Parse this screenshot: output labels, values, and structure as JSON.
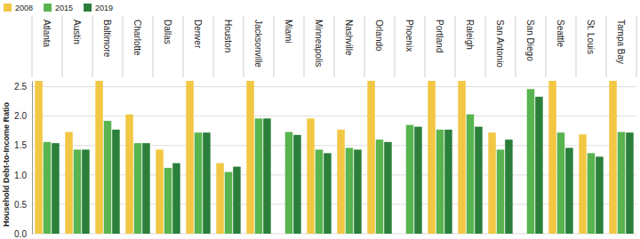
{
  "chart_data": {
    "type": "bar",
    "ylabel": "Household Debt-to-Income Ratio",
    "categories": [
      "Atlanta",
      "Austin",
      "Baltimore",
      "Charlotte",
      "Dallas",
      "Denver",
      "Houston",
      "Jacksonville",
      "Miami",
      "Minneapolis",
      "Nashville",
      "Orlando",
      "Phoenix",
      "Portland",
      "Raleigh",
      "San Antonio",
      "San Diego",
      "Seattle",
      "St. Louis",
      "Tampa Bay"
    ],
    "series": [
      {
        "name": "2008",
        "color": "#f2c744",
        "values": [
          2.6,
          1.73,
          2.6,
          2.03,
          1.43,
          2.6,
          1.2,
          2.6,
          null,
          1.96,
          1.77,
          2.6,
          null,
          2.6,
          2.6,
          1.72,
          null,
          2.6,
          1.69,
          2.6
        ]
      },
      {
        "name": "2015",
        "color": "#58b44f",
        "values": [
          1.56,
          1.43,
          1.92,
          1.54,
          1.12,
          1.72,
          1.05,
          1.96,
          1.73,
          1.43,
          1.46,
          1.6,
          1.85,
          1.77,
          2.03,
          1.43,
          2.46,
          1.72,
          1.37,
          1.73
        ]
      },
      {
        "name": "2019",
        "color": "#2b7f3a",
        "values": [
          1.54,
          1.43,
          1.77,
          1.54,
          1.2,
          1.72,
          1.14,
          1.96,
          1.68,
          1.37,
          1.43,
          1.56,
          1.82,
          1.77,
          1.82,
          1.6,
          2.33,
          1.46,
          1.31,
          1.72
        ]
      }
    ],
    "ylim": [
      0,
      2.6
    ],
    "yticks": [
      {
        "value": 0,
        "label": "0.0"
      },
      0.5,
      {
        "value": 1,
        "label": "1.0"
      },
      1.5,
      {
        "value": 2,
        "label": "2.0"
      },
      2.5
    ],
    "grid": true,
    "legend": "top-left"
  }
}
